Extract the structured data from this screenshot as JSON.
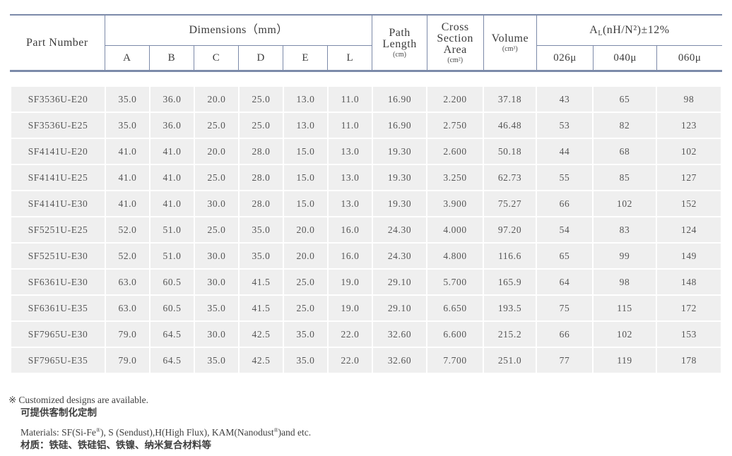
{
  "table": {
    "header": {
      "part_number": "Part Number",
      "dimensions_group": "Dimensions（mm）",
      "dim_columns": [
        "A",
        "B",
        "C",
        "D",
        "E",
        "L"
      ],
      "path_length": "Path Length",
      "path_length_unit": "(cm)",
      "cross_section": "Cross Section Area",
      "cross_section_unit": "(cm²)",
      "volume": "Volume",
      "volume_unit": "(cm³)",
      "al_symbol": "A",
      "al_subscript": "L",
      "al_rest": "(nH/N²)±12%",
      "al_columns": [
        "026μ",
        "040μ",
        "060μ"
      ]
    },
    "rows": [
      [
        "SF3536U-E20",
        "35.0",
        "36.0",
        "20.0",
        "25.0",
        "13.0",
        "11.0",
        "16.90",
        "2.200",
        "37.18",
        "43",
        "65",
        "98"
      ],
      [
        "SF3536U-E25",
        "35.0",
        "36.0",
        "25.0",
        "25.0",
        "13.0",
        "11.0",
        "16.90",
        "2.750",
        "46.48",
        "53",
        "82",
        "123"
      ],
      [
        "SF4141U-E20",
        "41.0",
        "41.0",
        "20.0",
        "28.0",
        "15.0",
        "13.0",
        "19.30",
        "2.600",
        "50.18",
        "44",
        "68",
        "102"
      ],
      [
        "SF4141U-E25",
        "41.0",
        "41.0",
        "25.0",
        "28.0",
        "15.0",
        "13.0",
        "19.30",
        "3.250",
        "62.73",
        "55",
        "85",
        "127"
      ],
      [
        "SF4141U-E30",
        "41.0",
        "41.0",
        "30.0",
        "28.0",
        "15.0",
        "13.0",
        "19.30",
        "3.900",
        "75.27",
        "66",
        "102",
        "152"
      ],
      [
        "SF5251U-E25",
        "52.0",
        "51.0",
        "25.0",
        "35.0",
        "20.0",
        "16.0",
        "24.30",
        "4.000",
        "97.20",
        "54",
        "83",
        "124"
      ],
      [
        "SF5251U-E30",
        "52.0",
        "51.0",
        "30.0",
        "35.0",
        "20.0",
        "16.0",
        "24.30",
        "4.800",
        "116.6",
        "65",
        "99",
        "149"
      ],
      [
        "SF6361U-E30",
        "63.0",
        "60.5",
        "30.0",
        "41.5",
        "25.0",
        "19.0",
        "29.10",
        "5.700",
        "165.9",
        "64",
        "98",
        "148"
      ],
      [
        "SF6361U-E35",
        "63.0",
        "60.5",
        "35.0",
        "41.5",
        "25.0",
        "19.0",
        "29.10",
        "6.650",
        "193.5",
        "75",
        "115",
        "172"
      ],
      [
        "SF7965U-E30",
        "79.0",
        "64.5",
        "30.0",
        "42.5",
        "35.0",
        "22.0",
        "32.60",
        "6.600",
        "215.2",
        "66",
        "102",
        "153"
      ],
      [
        "SF7965U-E35",
        "79.0",
        "64.5",
        "35.0",
        "42.5",
        "35.0",
        "22.0",
        "32.60",
        "7.700",
        "251.0",
        "77",
        "119",
        "178"
      ]
    ]
  },
  "notes": {
    "marker": "※",
    "customized_en": "Customized designs are available.",
    "customized_cn": "可提供客制化定制",
    "materials_parts": [
      "Materials: SF(Si-Fe",
      "), S (Sendust),H(High Flux), KAM(Nanodust",
      ")and etc."
    ],
    "registered_mark": "®",
    "materials_cn": "材质：铁硅、铁硅铝、铁镍、纳米复合材料等"
  },
  "colors": {
    "border_blue": "#7c8aa9",
    "cell_background": "#efefef",
    "header_text": "#3c3c3c",
    "data_text": "#565656"
  }
}
